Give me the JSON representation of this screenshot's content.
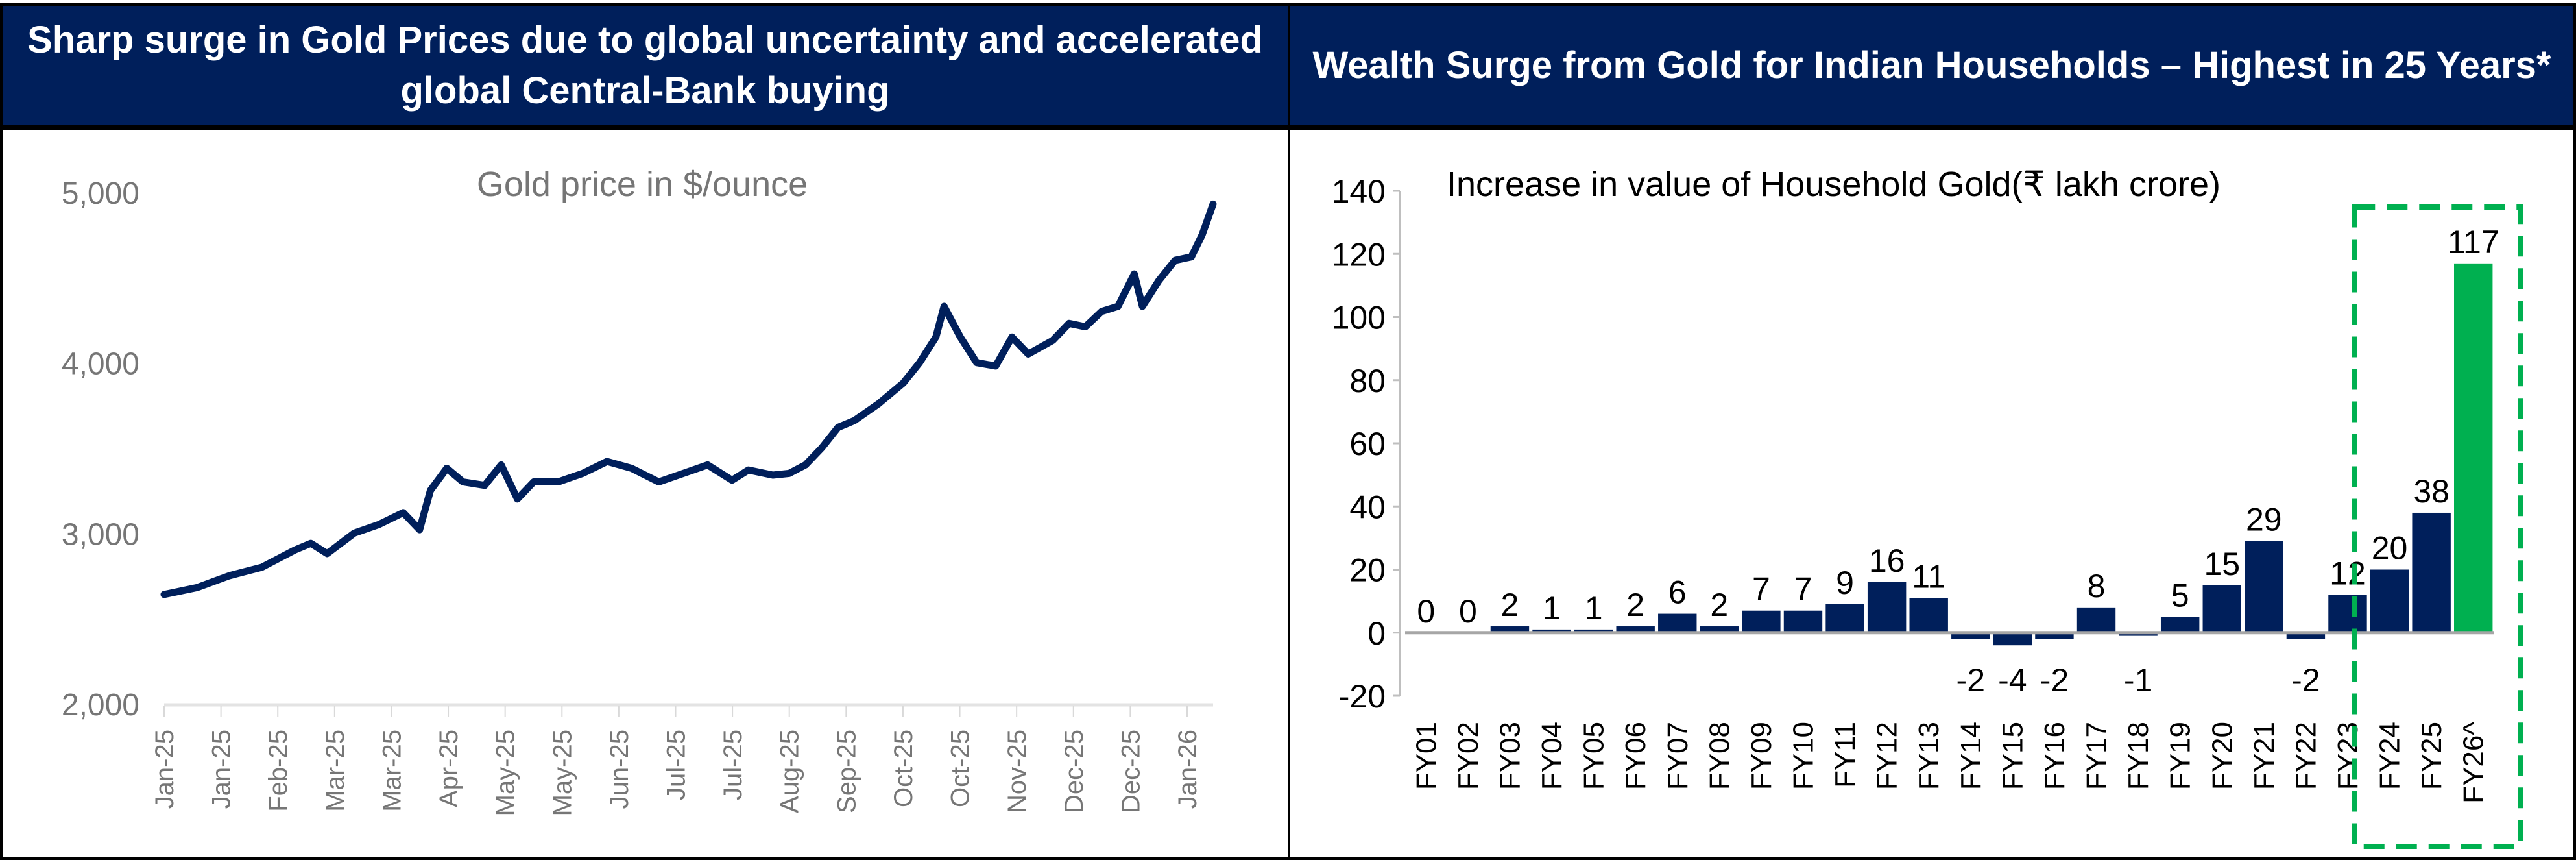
{
  "panels": {
    "left_header": "Sharp surge in Gold Prices due to global uncertainty and accelerated global Central-Bank buying",
    "right_header": "Wealth Surge from Gold for Indian Households – Highest in 25 Years*"
  },
  "colors": {
    "navy": "#001F5B",
    "green": "#00B050",
    "axis_text_gray": "#767676",
    "header_text": "#FFFFFF"
  },
  "chart_data": [
    {
      "type": "line",
      "title": "Gold price in $/ounce",
      "xlabel": "",
      "ylabel": "",
      "ylim": [
        2000,
        5000
      ],
      "yticks": [
        "2,000",
        "3,000",
        "4,000",
        "5,000"
      ],
      "ytick_values": [
        2000,
        3000,
        4000,
        5000
      ],
      "xtick_labels": [
        "Jan-25",
        "Jan-25",
        "Feb-25",
        "Mar-25",
        "Mar-25",
        "Apr-25",
        "May-25",
        "May-25",
        "Jun-25",
        "Jul-25",
        "Jul-25",
        "Aug-25",
        "Sep-25",
        "Oct-25",
        "Oct-25",
        "Nov-25",
        "Dec-25",
        "Dec-25",
        "Jan-26"
      ],
      "xlim": [
        "2025-01-01",
        "2026-01-22"
      ],
      "grid": false,
      "color": "#001F5B",
      "series": [
        {
          "x": [
            "2025-01-01",
            "2025-01-13",
            "2025-01-25",
            "2025-02-06",
            "2025-02-18",
            "2025-02-24",
            "2025-03-02",
            "2025-03-12",
            "2025-03-21",
            "2025-03-30",
            "2025-04-05",
            "2025-04-09",
            "2025-04-15",
            "2025-04-21",
            "2025-04-29",
            "2025-05-05",
            "2025-05-11",
            "2025-05-17",
            "2025-05-26",
            "2025-06-04",
            "2025-06-13",
            "2025-06-22",
            "2025-07-02",
            "2025-07-11",
            "2025-07-20",
            "2025-07-29",
            "2025-08-04",
            "2025-08-13",
            "2025-08-19",
            "2025-08-25",
            "2025-08-31",
            "2025-09-06",
            "2025-09-12",
            "2025-09-21",
            "2025-09-30",
            "2025-10-06",
            "2025-10-12",
            "2025-10-15",
            "2025-10-21",
            "2025-10-27",
            "2025-11-03",
            "2025-11-09",
            "2025-11-15",
            "2025-11-24",
            "2025-11-30",
            "2025-12-06",
            "2025-12-12",
            "2025-12-18",
            "2025-12-24",
            "2025-12-27",
            "2026-01-02",
            "2026-01-08",
            "2026-01-14",
            "2026-01-18",
            "2026-01-22"
          ],
          "y": [
            2640,
            2680,
            2750,
            2800,
            2900,
            2940,
            2880,
            3000,
            3050,
            3120,
            3020,
            3250,
            3380,
            3300,
            3280,
            3400,
            3200,
            3300,
            3300,
            3350,
            3420,
            3380,
            3300,
            3350,
            3400,
            3310,
            3370,
            3340,
            3350,
            3400,
            3500,
            3620,
            3660,
            3760,
            3880,
            4000,
            4150,
            4330,
            4150,
            4000,
            3980,
            4150,
            4050,
            4130,
            4230,
            4210,
            4300,
            4330,
            4520,
            4330,
            4480,
            4600,
            4620,
            4750,
            4930
          ]
        }
      ]
    },
    {
      "type": "bar",
      "title": "Increase in value of Household Gold(₹ lakh crore)",
      "xlabel": "",
      "ylabel": "",
      "ylim": [
        -20,
        140
      ],
      "yticks": [
        "-20",
        "0",
        "20",
        "40",
        "60",
        "80",
        "100",
        "120",
        "140"
      ],
      "ytick_values": [
        -20,
        0,
        20,
        40,
        60,
        80,
        100,
        120,
        140
      ],
      "grid": false,
      "categories": [
        "FY01",
        "FY02",
        "FY03",
        "FY04",
        "FY05",
        "FY06",
        "FY07",
        "FY08",
        "FY09",
        "FY10",
        "FY11",
        "FY12",
        "FY13",
        "FY14",
        "FY15",
        "FY16",
        "FY17",
        "FY18",
        "FY19",
        "FY20",
        "FY21",
        "FY22",
        "FY23",
        "FY24",
        "FY25",
        "FY26^"
      ],
      "values": [
        0,
        0,
        2,
        1,
        1,
        2,
        6,
        2,
        7,
        7,
        9,
        16,
        11,
        -2,
        -4,
        -2,
        8,
        -1,
        5,
        15,
        29,
        -2,
        12,
        20,
        38,
        117
      ],
      "data_labels": [
        "0",
        "0",
        "2",
        "1",
        "1",
        "2",
        "6",
        "2",
        "7",
        "7",
        "9",
        "16",
        "11",
        "-2",
        "-4",
        "-2",
        "8",
        "-1",
        "5",
        "15",
        "29",
        "-2",
        "12",
        "20",
        "38",
        "117"
      ],
      "bar_colors": {
        "default": "#001F5B",
        "highlight": "#00B050",
        "highlight_categories": [
          "FY26^"
        ]
      },
      "highlight_box_categories": [
        "FY24",
        "FY25",
        "FY26^"
      ]
    }
  ]
}
